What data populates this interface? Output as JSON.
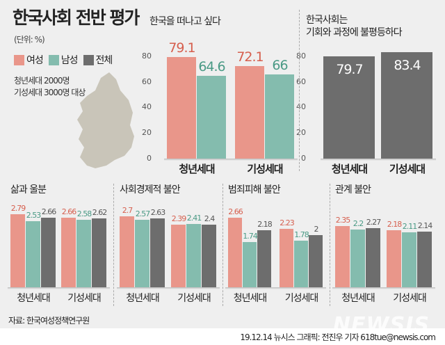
{
  "title": "한국사회 전반 평가",
  "unit": "(단위: %)",
  "legend": [
    {
      "label": "여성",
      "color": "#e9968a"
    },
    {
      "label": "남성",
      "color": "#84bcae"
    },
    {
      "label": "전체",
      "color": "#6d6d6d"
    }
  ],
  "note": [
    "청년세대 2000명",
    "기성세대 3000명 대상"
  ],
  "source": "자료: 한국여성정책연구원",
  "footer": "19.12.14 뉴시스 그래픽: 전진우 기자 618tue@newsis.com",
  "logo": "NEWSIS",
  "colors": {
    "female": "#e9968a",
    "male": "#84bcae",
    "total": "#6d6d6d",
    "female_text": "#d65f4e",
    "male_text": "#4a9a85",
    "total_text": "#555555"
  },
  "chart_data": [
    {
      "type": "bar",
      "title": "한국을 떠나고 싶다",
      "categories": [
        "청년세대",
        "기성세대"
      ],
      "ylim": [
        0,
        80
      ],
      "yticks": [
        0,
        20,
        40,
        60,
        80
      ],
      "series": [
        {
          "name": "여성",
          "values": [
            79.1,
            72.1
          ]
        },
        {
          "name": "남성",
          "values": [
            64.6,
            66
          ]
        }
      ]
    },
    {
      "type": "bar",
      "title": "한국사회는\n기회와 과정에 불평등하다",
      "categories": [
        "청년세대",
        "기성세대"
      ],
      "ylim": [
        0,
        80
      ],
      "yticks": [
        0,
        20,
        40,
        60,
        80
      ],
      "series": [
        {
          "name": "전체",
          "values": [
            79.7,
            83.4
          ]
        }
      ]
    },
    {
      "type": "bar",
      "title": "삶과 울분",
      "categories": [
        "청년세대",
        "기성세대"
      ],
      "series": [
        {
          "name": "여성",
          "values": [
            2.79,
            2.66
          ]
        },
        {
          "name": "남성",
          "values": [
            2.53,
            2.58
          ]
        },
        {
          "name": "전체",
          "values": [
            2.66,
            2.62
          ]
        }
      ]
    },
    {
      "type": "bar",
      "title": "사회경제적 불안",
      "categories": [
        "청년세대",
        "기성세대"
      ],
      "series": [
        {
          "name": "여성",
          "values": [
            2.7,
            2.39
          ]
        },
        {
          "name": "남성",
          "values": [
            2.57,
            2.41
          ]
        },
        {
          "name": "전체",
          "values": [
            2.63,
            2.4
          ]
        }
      ]
    },
    {
      "type": "bar",
      "title": "범죄피해 불안",
      "categories": [
        "청년세대",
        "기성세대"
      ],
      "series": [
        {
          "name": "여성",
          "values": [
            2.66,
            2.23
          ]
        },
        {
          "name": "남성",
          "values": [
            1.74,
            1.78
          ]
        },
        {
          "name": "전체",
          "values": [
            2.18,
            2
          ]
        }
      ]
    },
    {
      "type": "bar",
      "title": "관계 불안",
      "categories": [
        "청년세대",
        "기성세대"
      ],
      "series": [
        {
          "name": "여성",
          "values": [
            2.35,
            2.18
          ]
        },
        {
          "name": "남성",
          "values": [
            2.2,
            2.11
          ]
        },
        {
          "name": "전체",
          "values": [
            2.27,
            2.14
          ]
        }
      ]
    }
  ]
}
